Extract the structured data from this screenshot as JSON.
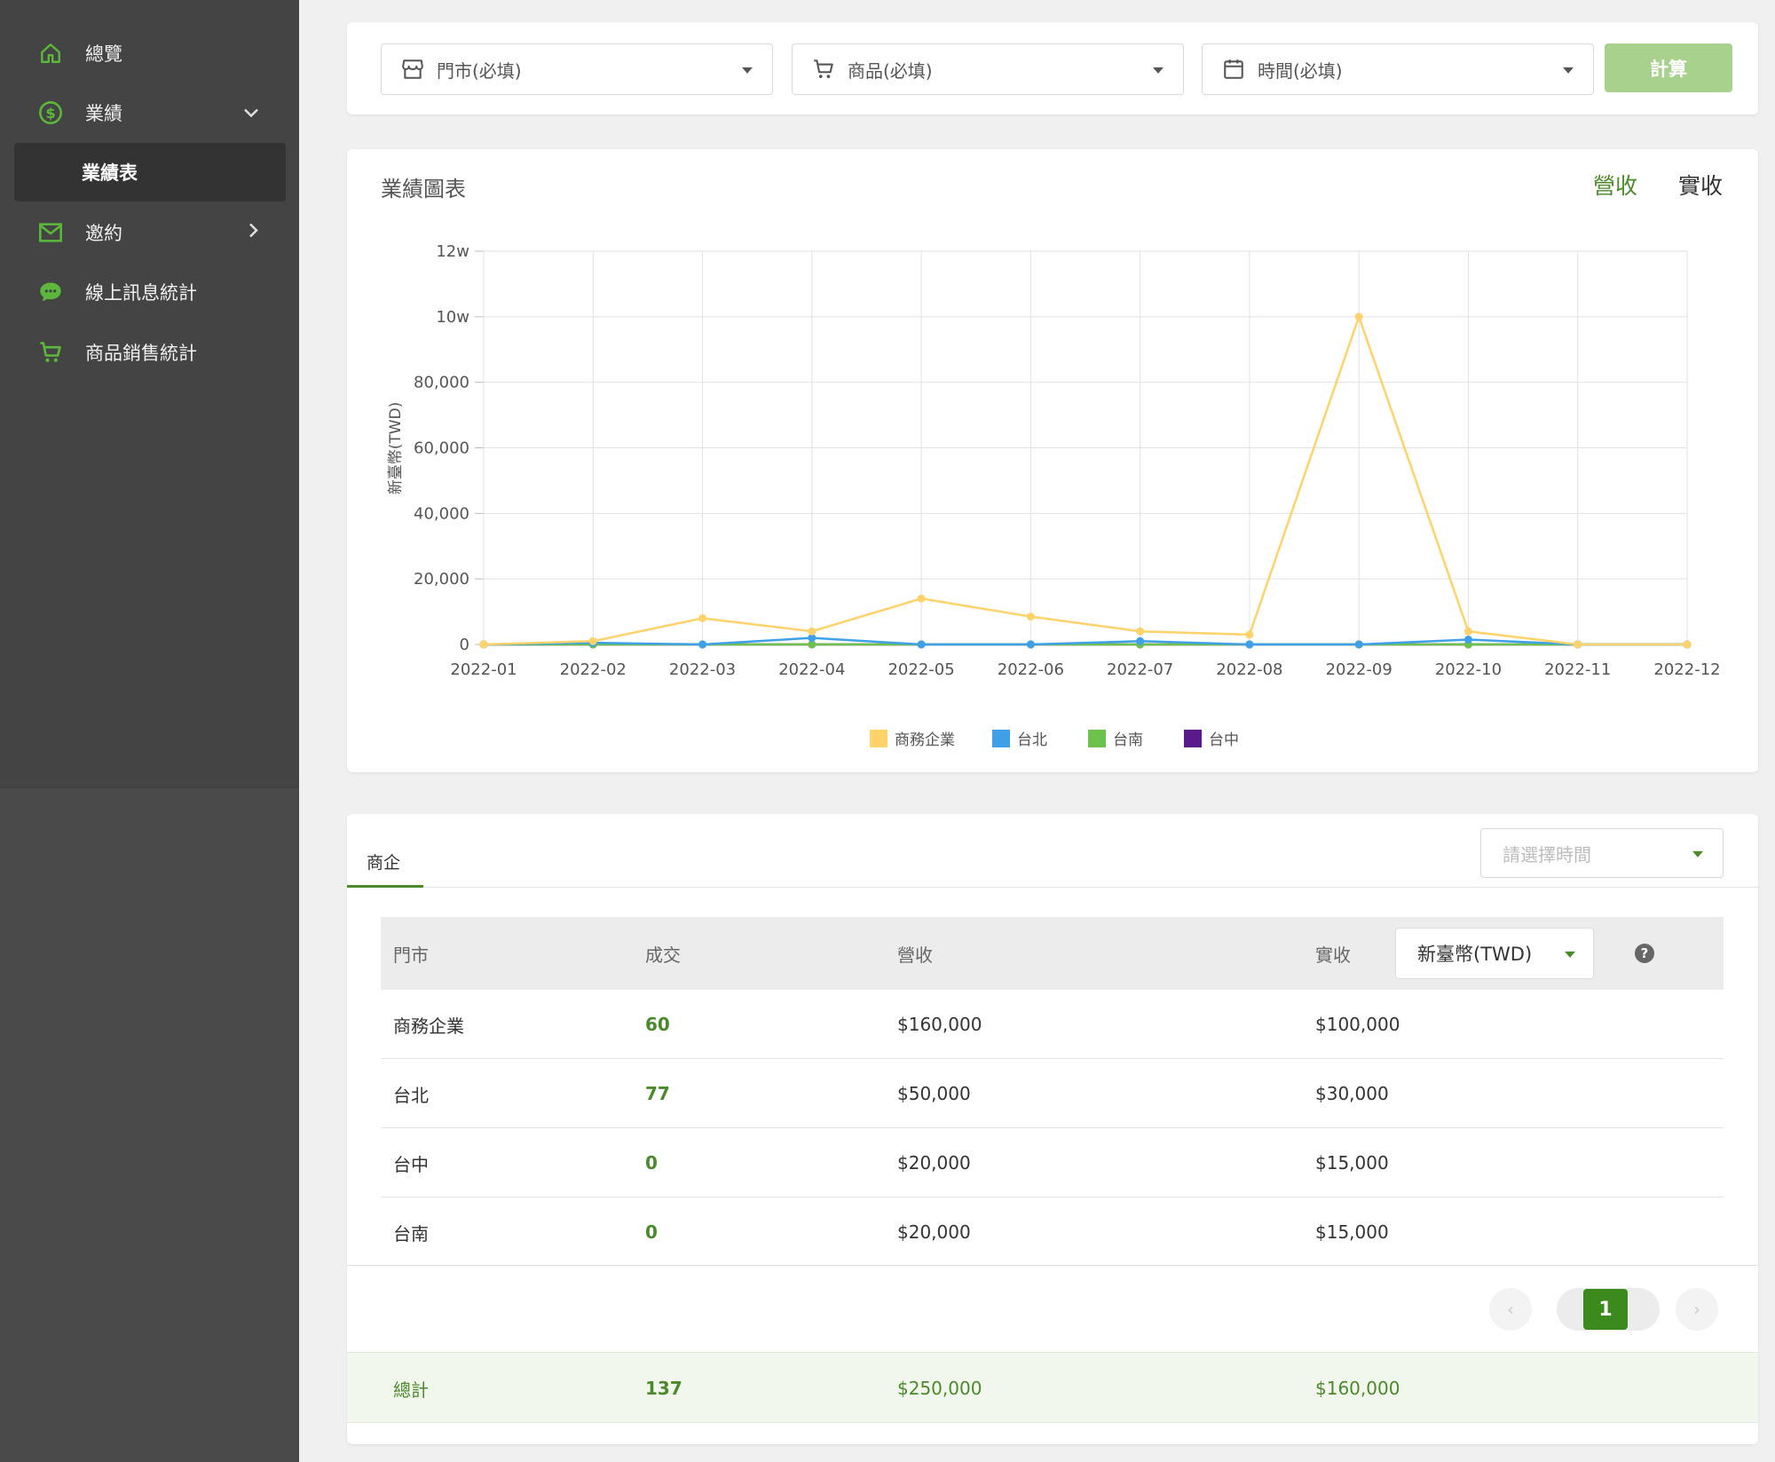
{
  "sidebar": {
    "items": [
      {
        "label": "總覽",
        "icon": "home-icon"
      },
      {
        "label": "業績",
        "icon": "dollar-icon"
      },
      {
        "label": "業績表"
      },
      {
        "label": "邀約",
        "icon": "mail-icon"
      },
      {
        "label": "線上訊息統計",
        "icon": "chat-icon"
      },
      {
        "label": "商品銷售統計",
        "icon": "cart-icon"
      }
    ]
  },
  "filters": {
    "store": "門市(必填)",
    "product": "商品(必填)",
    "time": "時間(必填)",
    "calc_label": "計算"
  },
  "chart_card": {
    "title": "業績圖表",
    "toggle_revenue": "營收",
    "toggle_received": "實收"
  },
  "chart_data": {
    "type": "line",
    "ylabel": "新臺幣(TWD)",
    "y_ticks": [
      "0",
      "20,000",
      "40,000",
      "60,000",
      "80,000",
      "10w",
      "12w"
    ],
    "ylim": [
      0,
      120000
    ],
    "grid": true,
    "legend": "bottom",
    "categories": [
      "2022-01",
      "2022-02",
      "2022-03",
      "2022-04",
      "2022-05",
      "2022-06",
      "2022-07",
      "2022-08",
      "2022-09",
      "2022-10",
      "2022-11",
      "2022-12"
    ],
    "series": [
      {
        "name": "商務企業",
        "color": "#ffd26a",
        "values": [
          0,
          1000,
          8000,
          4000,
          14000,
          8500,
          4000,
          3000,
          100000,
          4000,
          0,
          0
        ]
      },
      {
        "name": "台北",
        "color": "#3fa0e8",
        "values": [
          0,
          500,
          0,
          2000,
          0,
          0,
          1000,
          0,
          0,
          1500,
          0,
          0
        ]
      },
      {
        "name": "台南",
        "color": "#6cc24a",
        "values": [
          0,
          0,
          0,
          0,
          0,
          0,
          0,
          0,
          0,
          0,
          0,
          0
        ]
      },
      {
        "name": "台中",
        "color": "#5b1a8a",
        "values": [
          0,
          0,
          0,
          0,
          0,
          0,
          0,
          0,
          0,
          0,
          0,
          0
        ]
      }
    ]
  },
  "table": {
    "tab": "商企",
    "time_placeholder": "請選擇時間",
    "headers": {
      "store": "門市",
      "deals": "成交",
      "revenue": "營收",
      "received": "實收"
    },
    "currency": "新臺幣(TWD)",
    "help": "?",
    "rows": [
      {
        "store": "商務企業",
        "deals": "60",
        "revenue": "$160,000",
        "received": "$100,000"
      },
      {
        "store": "台北",
        "deals": "77",
        "revenue": "$50,000",
        "received": "$30,000"
      },
      {
        "store": "台中",
        "deals": "0",
        "revenue": "$20,000",
        "received": "$15,000"
      },
      {
        "store": "台南",
        "deals": "0",
        "revenue": "$20,000",
        "received": "$15,000"
      }
    ],
    "pager": {
      "prev": "‹",
      "page": "1",
      "next": "›"
    },
    "total": {
      "label": "總計",
      "deals": "137",
      "revenue": "$250,000",
      "received": "$160,000"
    }
  }
}
